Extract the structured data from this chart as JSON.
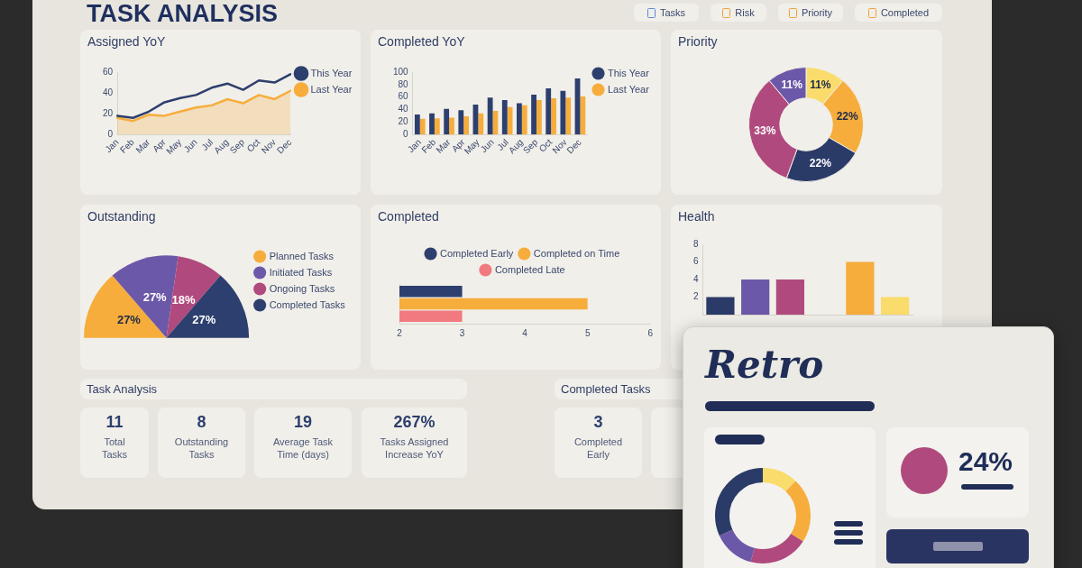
{
  "chart_data": [
    {
      "type": "other",
      "title": "TASK ANALYSIS",
      "annotations": [
        "Tasks",
        "Risk",
        "Priority",
        "Completed"
      ]
    },
    {
      "type": "line",
      "title": "Assigned YoY",
      "categories": [
        "Jan",
        "Feb",
        "Mar",
        "Apr",
        "May",
        "Jun",
        "Jul",
        "Aug",
        "Sep",
        "Oct",
        "Nov",
        "Dec"
      ],
      "series": [
        {
          "name": "This Year",
          "type": "line",
          "color": "#2d3f6e",
          "values": [
            18,
            16,
            22,
            31,
            35,
            38,
            45,
            49,
            43,
            52,
            50,
            58
          ]
        },
        {
          "name": "Last Year",
          "type": "area",
          "color": "#f6ad3c",
          "values": [
            16,
            13,
            19,
            18,
            22,
            26,
            28,
            34,
            30,
            38,
            34,
            42
          ]
        }
      ],
      "ylim": [
        0,
        60
      ],
      "yticks": [
        0,
        20,
        40,
        60
      ],
      "grid": false,
      "legend": "right",
      "marker": "none"
    },
    {
      "type": "bar",
      "title": "Completed YoY",
      "categories": [
        "Jan",
        "Feb",
        "Mar",
        "Apr",
        "May",
        "Jun",
        "Jul",
        "Aug",
        "Sep",
        "Oct",
        "Nov",
        "Dec"
      ],
      "series": [
        {
          "name": "This Year",
          "color": "#2d3f6e",
          "values": [
            32,
            34,
            41,
            39,
            48,
            59,
            55,
            50,
            64,
            74,
            70,
            90
          ]
        },
        {
          "name": "Last Year",
          "color": "#f6ad3c",
          "values": [
            25,
            26,
            27,
            29,
            34,
            38,
            44,
            47,
            55,
            58,
            59,
            61
          ]
        }
      ],
      "ylim": [
        0,
        100
      ],
      "yticks": [
        0,
        20,
        40,
        60,
        80,
        100
      ],
      "grid": false,
      "legend": "right"
    },
    {
      "type": "donut",
      "title": "Priority",
      "categories": [
        null,
        null,
        null,
        null,
        null
      ],
      "values": [
        11,
        22,
        22,
        33,
        11
      ],
      "colors": [
        "#f9dc6b",
        "#f6ad3c",
        "#2b3b68",
        "#b04a7e",
        "#6c58a8"
      ],
      "value_labels": [
        "11%",
        "22%",
        "22%",
        "33%",
        "11%"
      ]
    },
    {
      "type": "pie",
      "title": "Outstanding",
      "categories": [
        "Planned Tasks",
        "Initiated Tasks",
        "Ongoing Tasks",
        "Completed Tasks"
      ],
      "values": [
        27,
        27,
        18,
        27
      ],
      "colors": [
        "#f6ad3c",
        "#6c58a8",
        "#b04a7e",
        "#2d3f6e"
      ],
      "value_labels": [
        "27%",
        "27%",
        "18%",
        "27%"
      ],
      "legend": "right"
    },
    {
      "type": "bar",
      "title": "Completed",
      "orientation": "horizontal",
      "categories": [
        null
      ],
      "series": [
        {
          "name": "Completed Early",
          "color": "#2d3f6e",
          "values": [
            3
          ]
        },
        {
          "name": "Completed on Time",
          "color": "#f6ad3c",
          "values": [
            5
          ]
        },
        {
          "name": "Completed Late",
          "color": "#f17a80",
          "values": [
            3
          ]
        }
      ],
      "xlim": [
        2,
        6
      ],
      "xticks": [
        2,
        3,
        4,
        5,
        6
      ],
      "grid": false,
      "legend": "top"
    },
    {
      "type": "bar",
      "title": "Health",
      "categories": [
        null,
        null,
        null,
        null,
        null,
        null
      ],
      "values": [
        2,
        4,
        4,
        null,
        6,
        2
      ],
      "colors": [
        "#2b3b68",
        "#6c58a8",
        "#b04a7e",
        null,
        "#f6ad3c",
        "#f9dc6b"
      ],
      "ylim": [
        0,
        8
      ],
      "yticks": [
        2,
        4,
        6,
        8
      ],
      "grid": false,
      "tick_labels": "y"
    },
    {
      "type": "other",
      "title": "Task Analysis",
      "annotations": [
        "11",
        "Total Tasks",
        "8",
        "Outstanding Tasks",
        "19",
        "Average Task Time (days)",
        "267%",
        "Tasks Assigned Increase YoY"
      ]
    },
    {
      "type": "other",
      "title": "Completed Tasks",
      "annotations": [
        "3",
        "Completed Early"
      ]
    },
    {
      "type": "other",
      "title": "Retro",
      "annotations": [
        "24%"
      ]
    }
  ]
}
